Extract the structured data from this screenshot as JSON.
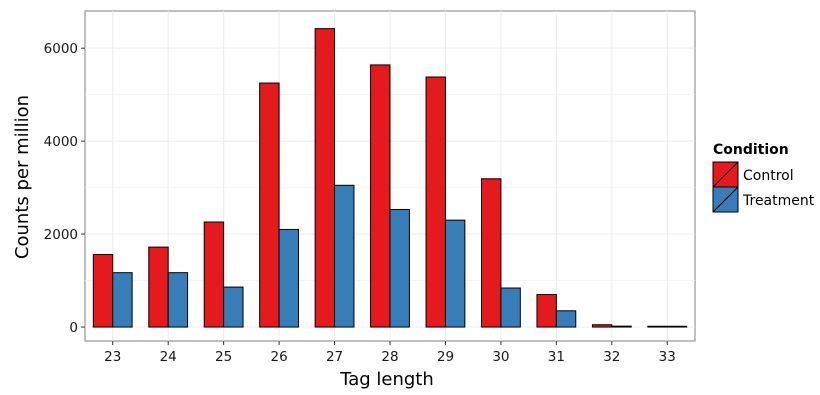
{
  "chart_data": {
    "type": "bar",
    "xlabel": "Tag length",
    "ylabel": "Counts per million",
    "categories": [
      "23",
      "24",
      "25",
      "26",
      "27",
      "28",
      "29",
      "30",
      "31",
      "32",
      "33"
    ],
    "ylim": [
      -300,
      6800
    ],
    "yticks": [
      0,
      2000,
      4000,
      6000
    ],
    "grid": true,
    "legend": {
      "title": "Condition",
      "position": "right"
    },
    "series": [
      {
        "name": "Control",
        "color": "#e41a1c",
        "values": [
          1560,
          1720,
          2260,
          5250,
          6420,
          5640,
          5380,
          3190,
          700,
          50,
          15
        ]
      },
      {
        "name": "Treatment",
        "color": "#377eb8",
        "values": [
          1170,
          1170,
          860,
          2100,
          3050,
          2530,
          2300,
          840,
          350,
          20,
          5
        ]
      }
    ]
  }
}
